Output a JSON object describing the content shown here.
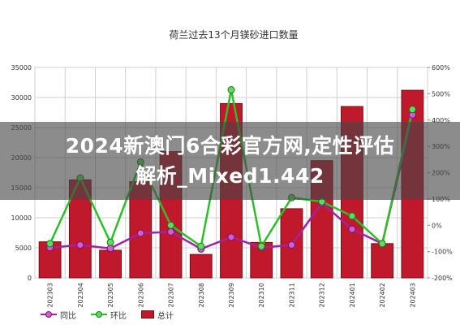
{
  "banner": {
    "line1": "2024新澳门6合彩官方网,定性评估",
    "line2": "解析_Mixed1.442"
  },
  "chart_data": {
    "type": "bar+line",
    "title": "荷兰过去13个月镁砂进口数量",
    "categories": [
      "202303",
      "202304",
      "202305",
      "202306",
      "202307",
      "202308",
      "202309",
      "202310",
      "202311",
      "202312",
      "202401",
      "202402",
      "202403"
    ],
    "y_left": {
      "ylim": [
        0,
        35000
      ],
      "ticks": [
        "0",
        "5000",
        "10000",
        "15000",
        "20000",
        "25000",
        "30000",
        "35000"
      ]
    },
    "y_right": {
      "ylim": [
        -200,
        600
      ],
      "ticks": [
        "-200%",
        "-100%",
        "0%",
        "100%",
        "200%",
        "300%",
        "400%",
        "500%",
        "600%"
      ]
    },
    "grid": true,
    "legend_position": "bottom-left",
    "series": [
      {
        "name": "同比",
        "kind": "line",
        "axis": "right",
        "color": "#a023a0",
        "values": [
          -85,
          -75,
          -88,
          -30,
          -25,
          -90,
          -45,
          -85,
          -75,
          85,
          -15,
          -70,
          420
        ]
      },
      {
        "name": "环比",
        "kind": "line",
        "axis": "right",
        "color": "#2bbf2b",
        "values": [
          -70,
          180,
          -65,
          240,
          0,
          -80,
          515,
          -80,
          105,
          90,
          35,
          -70,
          440
        ]
      },
      {
        "name": "总计",
        "kind": "bar",
        "axis": "left",
        "color": "#c0192b",
        "values": [
          6000,
          16300,
          4600,
          16000,
          21000,
          3900,
          29000,
          5900,
          11500,
          19500,
          28500,
          5700,
          31200
        ]
      }
    ]
  }
}
